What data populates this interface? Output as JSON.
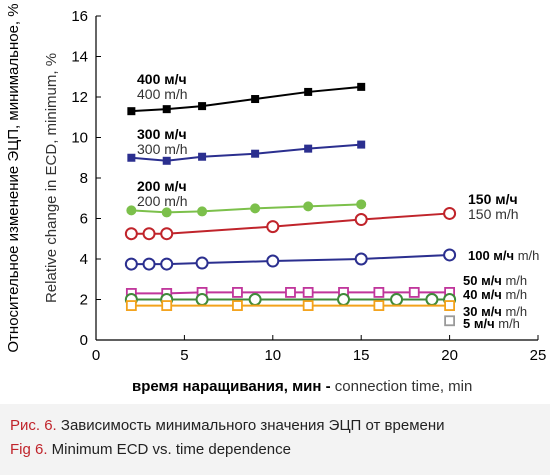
{
  "chart_data": {
    "type": "line",
    "ylabel_ru": "Относительное изменение ЭЦП, минимальное, %",
    "ylabel_en": "Relative change in ECD, minimum, %",
    "xlabel_ru": "время наращивания, мин - ",
    "xlabel_en": "connection time, min",
    "xlim": [
      0,
      25
    ],
    "ylim": [
      0,
      16
    ],
    "xticks": [
      "0",
      "5",
      "10",
      "15",
      "20",
      "25"
    ],
    "yticks": [
      "0",
      "2",
      "4",
      "6",
      "8",
      "10",
      "12",
      "14",
      "16"
    ],
    "series": [
      {
        "label_ru": "400 м/ч",
        "label_en": "400 m/h",
        "color": "#000000",
        "marker": "square-filled",
        "x": [
          2,
          4,
          6,
          9,
          12,
          15
        ],
        "y": [
          11.3,
          11.4,
          11.55,
          11.9,
          12.25,
          12.5
        ]
      },
      {
        "label_ru": "300 м/ч",
        "label_en": "300 m/h",
        "color": "#2b2f8f",
        "marker": "square-filled",
        "x": [
          2,
          4,
          6,
          9,
          12,
          15
        ],
        "y": [
          9.0,
          8.85,
          9.05,
          9.2,
          9.45,
          9.65
        ]
      },
      {
        "label_ru": "200 м/ч",
        "label_en": "200 m/h",
        "color": "#7cc04b",
        "marker": "circle-filled",
        "x": [
          2,
          4,
          6,
          9,
          12,
          15
        ],
        "y": [
          6.4,
          6.3,
          6.35,
          6.5,
          6.6,
          6.7
        ]
      },
      {
        "label_ru": "150 м/ч",
        "label_en": "150 m/h",
        "color": "#c0242b",
        "marker": "circle-open",
        "x": [
          2,
          3,
          4,
          10,
          15,
          20
        ],
        "y": [
          5.25,
          5.25,
          5.25,
          5.6,
          5.95,
          6.25
        ]
      },
      {
        "label_ru": "100 м/ч",
        "label_en": "m/h",
        "color": "#2b2f8f",
        "marker": "circle-open",
        "x": [
          2,
          3,
          4,
          6,
          10,
          15,
          20
        ],
        "y": [
          3.75,
          3.75,
          3.75,
          3.8,
          3.9,
          4.0,
          4.2
        ]
      },
      {
        "label_ru": "50 м/ч",
        "label_en": "m/h",
        "color": "#c0359b",
        "marker": "square-open",
        "x": [
          2,
          4,
          6,
          8,
          11,
          12,
          14,
          16,
          18,
          20
        ],
        "y": [
          2.3,
          2.3,
          2.35,
          2.35,
          2.35,
          2.35,
          2.35,
          2.35,
          2.35,
          2.35
        ]
      },
      {
        "label_ru": "40 м/ч",
        "label_en": "m/h",
        "color": "#3f8a3a",
        "marker": "circle-open",
        "x": [
          2,
          4,
          6,
          9,
          14,
          17,
          19,
          20
        ],
        "y": [
          2.0,
          2.0,
          2.0,
          2.0,
          2.0,
          2.0,
          2.0,
          2.0
        ]
      },
      {
        "label_ru": "30 м/ч",
        "label_en": "m/h",
        "color": "#f3a21b",
        "marker": "square-open",
        "x": [
          2,
          4,
          8,
          12,
          16,
          20
        ],
        "y": [
          1.7,
          1.7,
          1.7,
          1.7,
          1.7,
          1.7
        ]
      },
      {
        "label_ru": "5 м/ч",
        "label_en": "m/h",
        "color": "#9a9a9a",
        "marker": "square-open",
        "x": [
          20
        ],
        "y": [
          0.95
        ]
      }
    ]
  },
  "caption": {
    "line1_prefix": "Рис. 6.",
    "line1_text": " Зависимость минимального значения ЭЦП от времени",
    "line2_prefix": "Fig 6.",
    "line2_text": " Minimum ECD vs. time dependence"
  }
}
